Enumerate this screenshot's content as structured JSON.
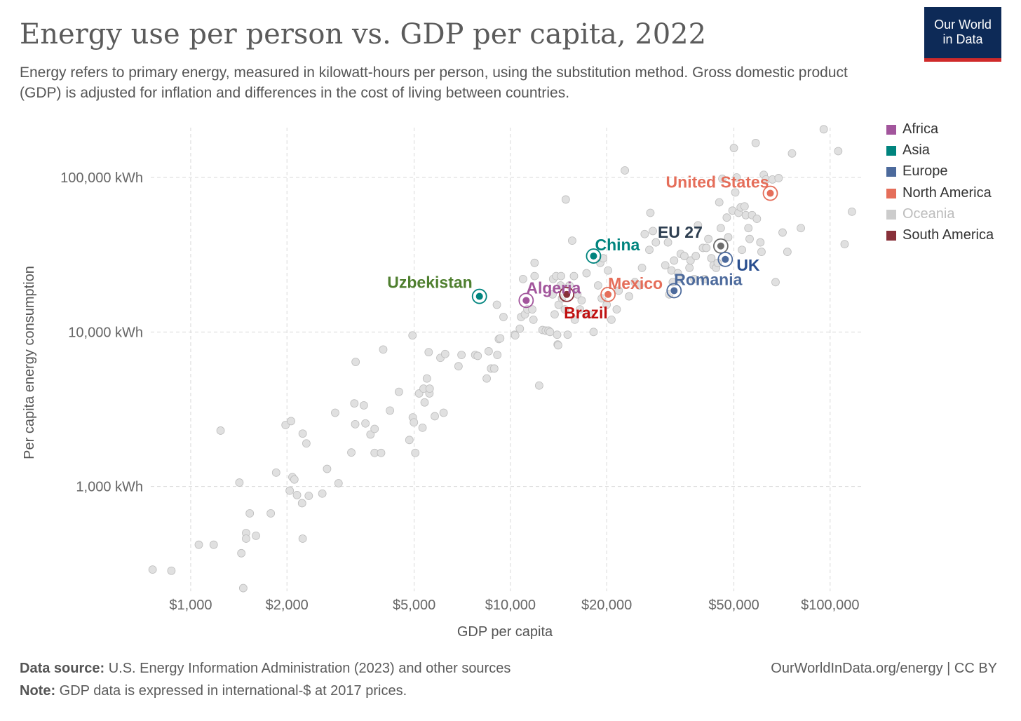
{
  "header": {
    "title": "Energy use per person vs. GDP per capita, 2022",
    "subtitle": "Energy refers to primary energy, measured in kilowatt-hours per person, using the substitution method. Gross domestic product (GDP) is adjusted for inflation and differences in the cost of living between countries.",
    "logo_line1": "Our World",
    "logo_line2": "in Data"
  },
  "footer": {
    "source_label": "Data source:",
    "source_text": "U.S. Energy Information Administration (2023) and other sources",
    "note_label": "Note:",
    "note_text": "GDP data is expressed in international-$ at 2017 prices.",
    "link": "OurWorldInData.org/energy | CC BY"
  },
  "legend": [
    {
      "label": "Africa",
      "color": "#a2559c"
    },
    {
      "label": "Asia",
      "color": "#00847e"
    },
    {
      "label": "Europe",
      "color": "#4c6a9c"
    },
    {
      "label": "North America",
      "color": "#e56e5a"
    },
    {
      "label": "Oceania",
      "color": "#cccccc"
    },
    {
      "label": "South America",
      "color": "#883039"
    }
  ],
  "chart_data": {
    "type": "scatter",
    "xlabel": "GDP per capita",
    "ylabel": "Per capita energy consumption",
    "x_scale": "log",
    "y_scale": "log",
    "xlim": [
      750,
      125000
    ],
    "ylim": [
      210,
      210000
    ],
    "grid": true,
    "legend_position": "right",
    "x_ticks": [
      {
        "value": 1000,
        "label": "$1,000"
      },
      {
        "value": 2000,
        "label": "$2,000"
      },
      {
        "value": 5000,
        "label": "$5,000"
      },
      {
        "value": 10000,
        "label": "$10,000"
      },
      {
        "value": 20000,
        "label": "$20,000"
      },
      {
        "value": 50000,
        "label": "$50,000"
      },
      {
        "value": 100000,
        "label": "$100,000"
      }
    ],
    "y_ticks": [
      {
        "value": 1000,
        "label": "1,000 kWh"
      },
      {
        "value": 10000,
        "label": "10,000 kWh"
      },
      {
        "value": 100000,
        "label": "100,000 kWh"
      }
    ],
    "highlighted": [
      {
        "name": "United States",
        "x": 65000,
        "y": 79000,
        "color": "#e56e5a",
        "label_color": "#e56e5a"
      },
      {
        "name": "EU 27",
        "x": 45500,
        "y": 36000,
        "color": "#6d6d6d",
        "label_color": "#2d3e50"
      },
      {
        "name": "UK",
        "x": 47000,
        "y": 29500,
        "color": "#4c6a9c",
        "label_color": "#2a4f8f"
      },
      {
        "name": "China",
        "x": 18200,
        "y": 31000,
        "color": "#00847e",
        "label_color": "#00847e"
      },
      {
        "name": "Romania",
        "x": 32500,
        "y": 18500,
        "color": "#4c6a9c",
        "label_color": "#4c6a9c"
      },
      {
        "name": "Mexico",
        "x": 20200,
        "y": 17500,
        "color": "#e56e5a",
        "label_color": "#e56e5a"
      },
      {
        "name": "Brazil",
        "x": 15000,
        "y": 17500,
        "color": "#883039",
        "label_color": "#c01010"
      },
      {
        "name": "Algeria",
        "x": 11200,
        "y": 16000,
        "color": "#a2559c",
        "label_color": "#a2559c"
      },
      {
        "name": "Uzbekistan",
        "x": 8000,
        "y": 17000,
        "color": "#00847e",
        "label_color": "#4f7f2f"
      }
    ],
    "other_points": [
      [
        760,
        290
      ],
      [
        870,
        285
      ],
      [
        1060,
        420
      ],
      [
        1180,
        420
      ],
      [
        1240,
        2300
      ],
      [
        1420,
        1060
      ],
      [
        1440,
        370
      ],
      [
        1460,
        220
      ],
      [
        1490,
        500
      ],
      [
        1490,
        460
      ],
      [
        1530,
        670
      ],
      [
        1600,
        480
      ],
      [
        1780,
        670
      ],
      [
        1850,
        1230
      ],
      [
        1980,
        2500
      ],
      [
        2040,
        940
      ],
      [
        2060,
        2650
      ],
      [
        2080,
        1150
      ],
      [
        2110,
        1110
      ],
      [
        2150,
        880
      ],
      [
        2230,
        780
      ],
      [
        2240,
        460
      ],
      [
        2240,
        2200
      ],
      [
        2300,
        1900
      ],
      [
        2340,
        870
      ],
      [
        2580,
        900
      ],
      [
        2670,
        1300
      ],
      [
        2830,
        3000
      ],
      [
        2900,
        1050
      ],
      [
        3180,
        1660
      ],
      [
        3250,
        3450
      ],
      [
        3270,
        2530
      ],
      [
        3280,
        6400
      ],
      [
        3480,
        3350
      ],
      [
        3520,
        2560
      ],
      [
        3650,
        2170
      ],
      [
        3760,
        1650
      ],
      [
        3760,
        2360
      ],
      [
        3940,
        1650
      ],
      [
        4000,
        7700
      ],
      [
        4200,
        3100
      ],
      [
        4480,
        4100
      ],
      [
        4830,
        2000
      ],
      [
        4940,
        9500
      ],
      [
        4950,
        2800
      ],
      [
        4990,
        2600
      ],
      [
        5040,
        1650
      ],
      [
        5180,
        4000
      ],
      [
        5310,
        2400
      ],
      [
        5350,
        4300
      ],
      [
        5390,
        3500
      ],
      [
        5480,
        5000
      ],
      [
        5550,
        7400
      ],
      [
        5580,
        4000
      ],
      [
        5590,
        4300
      ],
      [
        5800,
        2850
      ],
      [
        6040,
        6800
      ],
      [
        6180,
        3000
      ],
      [
        6250,
        7200
      ],
      [
        6880,
        6000
      ],
      [
        7030,
        7100
      ],
      [
        7760,
        7100
      ],
      [
        7900,
        7000
      ],
      [
        8430,
        5000
      ],
      [
        8550,
        7500
      ],
      [
        8700,
        5800
      ],
      [
        8900,
        5800
      ],
      [
        9100,
        7100
      ],
      [
        9200,
        9000
      ],
      [
        9290,
        9100
      ],
      [
        9070,
        15000
      ],
      [
        9510,
        12500
      ],
      [
        10300,
        9600
      ],
      [
        10350,
        9500
      ],
      [
        10700,
        10500
      ],
      [
        10800,
        12500
      ],
      [
        10950,
        22000
      ],
      [
        11100,
        13000
      ],
      [
        11300,
        14000
      ],
      [
        11700,
        14000
      ],
      [
        11800,
        12000
      ],
      [
        11900,
        23000
      ],
      [
        11900,
        28000
      ],
      [
        12300,
        4500
      ],
      [
        12600,
        10300
      ],
      [
        12900,
        10200
      ],
      [
        13150,
        10200
      ],
      [
        13300,
        10000
      ],
      [
        13550,
        17500
      ],
      [
        13600,
        22000
      ],
      [
        13750,
        13000
      ],
      [
        13900,
        23000
      ],
      [
        14000,
        9600
      ],
      [
        14050,
        8300
      ],
      [
        14100,
        8200
      ],
      [
        14150,
        15000
      ],
      [
        14350,
        20000
      ],
      [
        14400,
        23000
      ],
      [
        14500,
        16500
      ],
      [
        14800,
        14000
      ],
      [
        14900,
        72000
      ],
      [
        15100,
        9600
      ],
      [
        15300,
        20000
      ],
      [
        15600,
        39000
      ],
      [
        15800,
        23000
      ],
      [
        15900,
        12000
      ],
      [
        16200,
        17500
      ],
      [
        16500,
        14000
      ],
      [
        16700,
        16000
      ],
      [
        17300,
        24000
      ],
      [
        17600,
        13000
      ],
      [
        18200,
        10000
      ],
      [
        18800,
        20000
      ],
      [
        19100,
        28000
      ],
      [
        19300,
        16500
      ],
      [
        19500,
        30000
      ],
      [
        20000,
        15000
      ],
      [
        20200,
        25000
      ],
      [
        20700,
        12000
      ],
      [
        21500,
        14000
      ],
      [
        21800,
        18500
      ],
      [
        22800,
        111000
      ],
      [
        23500,
        17000
      ],
      [
        24500,
        21000
      ],
      [
        25300,
        20000
      ],
      [
        25800,
        26000
      ],
      [
        26300,
        43000
      ],
      [
        27200,
        34000
      ],
      [
        27400,
        59000
      ],
      [
        27900,
        45000
      ],
      [
        28500,
        38000
      ],
      [
        30500,
        27000
      ],
      [
        31100,
        38000
      ],
      [
        31400,
        17500
      ],
      [
        31900,
        25000
      ],
      [
        32200,
        21000
      ],
      [
        32500,
        29000
      ],
      [
        33400,
        24000
      ],
      [
        33700,
        22000
      ],
      [
        34100,
        32000
      ],
      [
        35000,
        31000
      ],
      [
        36300,
        26000
      ],
      [
        36600,
        29000
      ],
      [
        37600,
        22000
      ],
      [
        38000,
        31000
      ],
      [
        38600,
        49000
      ],
      [
        40000,
        35000
      ],
      [
        40500,
        22000
      ],
      [
        41000,
        35000
      ],
      [
        41600,
        40000
      ],
      [
        42500,
        30000
      ],
      [
        43200,
        27000
      ],
      [
        44000,
        26000
      ],
      [
        44500,
        28000
      ],
      [
        45000,
        69000
      ],
      [
        45500,
        47000
      ],
      [
        46000,
        98000
      ],
      [
        47500,
        55000
      ],
      [
        48000,
        41000
      ],
      [
        49500,
        61000
      ],
      [
        50000,
        155000
      ],
      [
        50500,
        80000
      ],
      [
        51000,
        100000
      ],
      [
        51700,
        59000
      ],
      [
        52500,
        64000
      ],
      [
        53000,
        34000
      ],
      [
        54000,
        65000
      ],
      [
        54500,
        57000
      ],
      [
        55500,
        47000
      ],
      [
        56000,
        40000
      ],
      [
        57000,
        57000
      ],
      [
        58500,
        167000
      ],
      [
        59000,
        54000
      ],
      [
        60500,
        38000
      ],
      [
        61000,
        33000
      ],
      [
        62000,
        104000
      ],
      [
        63000,
        97000
      ],
      [
        66000,
        97000
      ],
      [
        67500,
        21000
      ],
      [
        69000,
        99000
      ],
      [
        71000,
        44000
      ],
      [
        73500,
        33000
      ],
      [
        76000,
        143000
      ],
      [
        81000,
        47000
      ],
      [
        95500,
        205000
      ],
      [
        106000,
        148000
      ],
      [
        111000,
        37000
      ],
      [
        117000,
        60000
      ]
    ]
  }
}
